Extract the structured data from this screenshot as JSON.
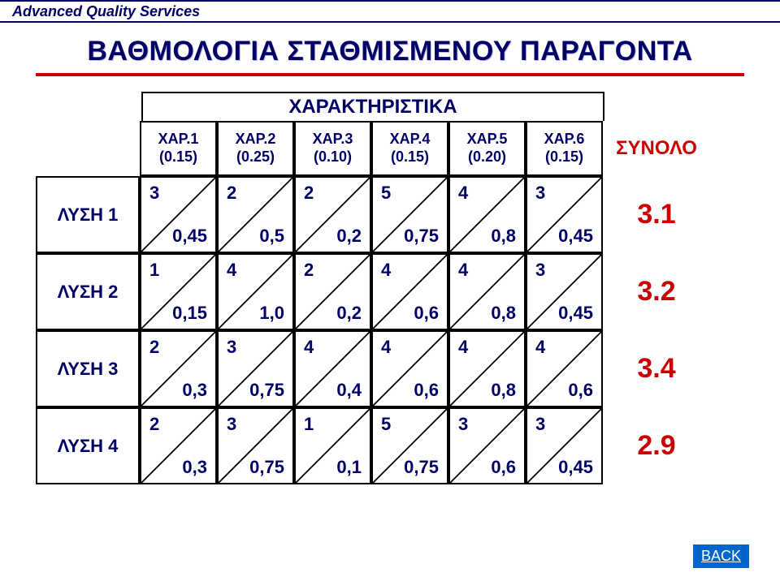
{
  "company": "Advanced Quality Services",
  "title": "ΒΑΘΜΟΛΟΓΙΑ ΣΤΑΘΜΙΣΜΕΝΟΥ ΠΑΡΑΓΟΝΤΑ",
  "super_header": "ΧΑΡΑΚΤΗΡΙΣΤΙΚΑ",
  "total_label": "ΣΥΝΟΛΟ",
  "back_label": "BACK",
  "columns": [
    {
      "name": "ΧΑΡ.1",
      "weight": "(0.15)"
    },
    {
      "name": "ΧΑΡ.2",
      "weight": "(0.25)"
    },
    {
      "name": "ΧΑΡ.3",
      "weight": "(0.10)"
    },
    {
      "name": "ΧΑΡ.4",
      "weight": "(0.15)"
    },
    {
      "name": "ΧΑΡ.5",
      "weight": "(0.20)"
    },
    {
      "name": "ΧΑΡ.6",
      "weight": "(0.15)"
    }
  ],
  "rows": [
    {
      "label": "ΛΥΣΗ 1",
      "cells": [
        {
          "top": "3",
          "bot": "0,45"
        },
        {
          "top": "2",
          "bot": "0,5"
        },
        {
          "top": "2",
          "bot": "0,2"
        },
        {
          "top": "5",
          "bot": "0,75"
        },
        {
          "top": "4",
          "bot": "0,8"
        },
        {
          "top": "3",
          "bot": "0,45"
        }
      ],
      "total": "3.1"
    },
    {
      "label": "ΛΥΣΗ 2",
      "cells": [
        {
          "top": "1",
          "bot": "0,15"
        },
        {
          "top": "4",
          "bot": "1,0"
        },
        {
          "top": "2",
          "bot": "0,2"
        },
        {
          "top": "4",
          "bot": "0,6"
        },
        {
          "top": "4",
          "bot": "0,8"
        },
        {
          "top": "3",
          "bot": "0,45"
        }
      ],
      "total": "3.2"
    },
    {
      "label": "ΛΥΣΗ 3",
      "cells": [
        {
          "top": "2",
          "bot": "0,3"
        },
        {
          "top": "3",
          "bot": "0,75"
        },
        {
          "top": "4",
          "bot": "0,4"
        },
        {
          "top": "4",
          "bot": "0,6"
        },
        {
          "top": "4",
          "bot": "0,8"
        },
        {
          "top": "4",
          "bot": "0,6"
        }
      ],
      "total": "3.4"
    },
    {
      "label": "ΛΥΣΗ 4",
      "cells": [
        {
          "top": "2",
          "bot": "0,3"
        },
        {
          "top": "3",
          "bot": "0,75"
        },
        {
          "top": "1",
          "bot": "0,1"
        },
        {
          "top": "5",
          "bot": "0,75"
        },
        {
          "top": "3",
          "bot": "0,6"
        },
        {
          "top": "3",
          "bot": "0,45"
        }
      ],
      "total": "2.9"
    }
  ],
  "layout": {
    "background_color": "#ffffff",
    "header_color": "#000066",
    "accent_color": "#cc0000",
    "back_bg": "#0066cc",
    "label_col_width": 128,
    "data_col_width": 95,
    "total_col_width": 132,
    "header_row_height": 68,
    "data_row_height": 95,
    "border_color": "#000000",
    "cell_divider": "diagonal"
  }
}
